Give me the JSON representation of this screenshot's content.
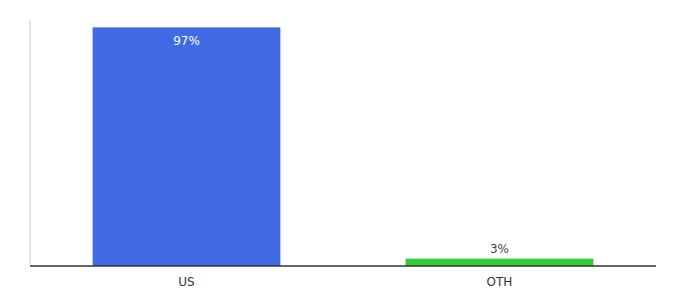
{
  "chart_data": {
    "type": "bar",
    "categories": [
      "US",
      "OTH"
    ],
    "values": [
      97,
      3
    ],
    "value_labels": [
      "97%",
      "3%"
    ],
    "colors": [
      "#4169e1",
      "#33cc33"
    ],
    "ylim": [
      0,
      100
    ],
    "data_labels": true,
    "tick_labels": "x",
    "grid": false
  }
}
